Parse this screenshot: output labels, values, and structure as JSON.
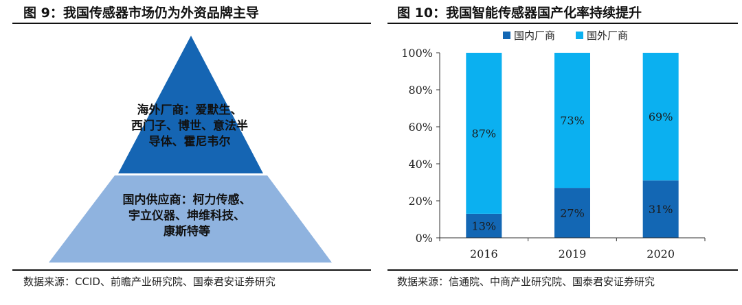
{
  "left": {
    "title": "图 9：我国传感器市场仍为外资品牌主导",
    "pyramid": {
      "top_tier_lines": [
        "海外厂商：爱默生、",
        "西门子、博世、意法半",
        "导体、霍尼韦尔"
      ],
      "bottom_tier_lines": [
        "国内供应商：柯力传感、",
        "宇立仪器、坤维科技、",
        "康斯特等"
      ],
      "colors": {
        "top": "#1565b3",
        "bottom": "#8fb3df"
      }
    },
    "source": "数据来源：CCID、前瞻产业研究院、国泰君安证券研究"
  },
  "right": {
    "title": "图 10：我国智能传感器国产化率持续提升",
    "source": "数据来源：信通院、中商产业研究院、国泰君安证券研究"
  },
  "chart_data": {
    "type": "bar",
    "stacked": true,
    "categories": [
      "2016",
      "2019",
      "2020"
    ],
    "series": [
      {
        "name": "国内厂商",
        "values": [
          13,
          27,
          31
        ],
        "color": "#1367b4"
      },
      {
        "name": "国外厂商",
        "values": [
          87,
          73,
          69
        ],
        "color": "#0bb0f0"
      }
    ],
    "data_labels": [
      [
        "13%",
        "27%",
        "31%"
      ],
      [
        "87%",
        "73%",
        "69%"
      ]
    ],
    "y_ticks": [
      "0%",
      "20%",
      "40%",
      "60%",
      "80%",
      "100%"
    ],
    "ylim": [
      0,
      100
    ],
    "legend_position": "top",
    "grid": false
  }
}
